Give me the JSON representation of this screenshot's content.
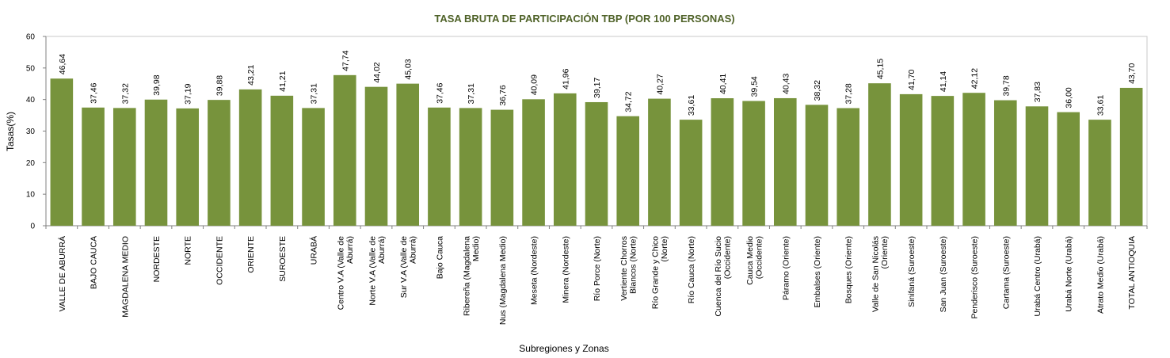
{
  "chart_data": {
    "type": "bar",
    "title": "TASA BRUTA DE PARTICIPACIÓN TBP (POR 100 PERSONAS)",
    "xlabel": "Subregiones y Zonas",
    "ylabel": "Tasas(%)",
    "ylim": [
      0,
      60
    ],
    "yticks": [
      "0",
      "10",
      "20",
      "30",
      "40",
      "50",
      "60"
    ],
    "grid": false,
    "legend": "none",
    "bar_color": "#77933c",
    "title_color": "#4f6228",
    "categories": [
      [
        "VALLE DE ABURRÁ"
      ],
      [
        "BAJO CAUCA"
      ],
      [
        "MAGDALENA MEDIO"
      ],
      [
        "NORDESTE"
      ],
      [
        "NORTE"
      ],
      [
        "OCCIDENTE"
      ],
      [
        "ORIENTE"
      ],
      [
        "SUROESTE"
      ],
      [
        "URABÁ"
      ],
      [
        "Centro V.A (Valle de",
        "Aburrá)"
      ],
      [
        "Norte V.A (Valle de",
        "Aburrá)"
      ],
      [
        "Sur  V.A (Valle de",
        "Aburrá)"
      ],
      [
        "Bajo Cauca"
      ],
      [
        "Ribereña  (Magdalena",
        "Medio)"
      ],
      [
        "Nus  (Magdalena Medio)"
      ],
      [
        "Meseta  (Nordeste)"
      ],
      [
        "Minera  (Nordeste)"
      ],
      [
        "Río Porce   (Norte)"
      ],
      [
        "Vertiente Chorros",
        "Blancos (Norte)"
      ],
      [
        "Río Grande y Chico",
        "(Norte)"
      ],
      [
        "Río Cauca  (Norte)"
      ],
      [
        "Cuenca del Río Sucio",
        "(Occidente)"
      ],
      [
        "Cauca Medio",
        "(Occidente)"
      ],
      [
        "Páramo  (Oriente)"
      ],
      [
        "Embalses  (Oriente)"
      ],
      [
        "Bosques  (Oriente)"
      ],
      [
        "Valle de San Nicolás",
        "(Oriente)"
      ],
      [
        "Sinifaná (Suroeste)"
      ],
      [
        "San Juan  (Suroeste)"
      ],
      [
        "Penderisco (Suroeste)"
      ],
      [
        "Cartama  (Suroeste)"
      ],
      [
        "Urabá Centro  (Urabá)"
      ],
      [
        "Urabá Norte  (Urabá)"
      ],
      [
        "Atrato Medio  (Urabá)"
      ],
      [
        "TOTAL ANTIOQUIA"
      ]
    ],
    "values": [
      46.64,
      37.46,
      37.32,
      39.98,
      37.19,
      39.88,
      43.21,
      41.21,
      37.31,
      47.74,
      44.02,
      45.03,
      37.46,
      37.31,
      36.76,
      40.09,
      41.96,
      39.17,
      34.72,
      40.27,
      33.61,
      40.41,
      39.54,
      40.43,
      38.32,
      37.28,
      45.15,
      41.7,
      41.14,
      42.12,
      39.78,
      37.83,
      36.0,
      33.61,
      43.7
    ],
    "data_labels": [
      "46,64",
      "37,46",
      "37,32",
      "39,98",
      "37,19",
      "39,88",
      "43,21",
      "41,21",
      "37,31",
      "47,74",
      "44,02",
      "45,03",
      "37,46",
      "37,31",
      "36,76",
      "40,09",
      "41,96",
      "39,17",
      "34,72",
      "40,27",
      "33,61",
      "40,41",
      "39,54",
      "40,43",
      "38,32",
      "37,28",
      "45,15",
      "41,70",
      "41,14",
      "42,12",
      "39,78",
      "37,83",
      "36,00",
      "33,61",
      "43,70"
    ]
  }
}
